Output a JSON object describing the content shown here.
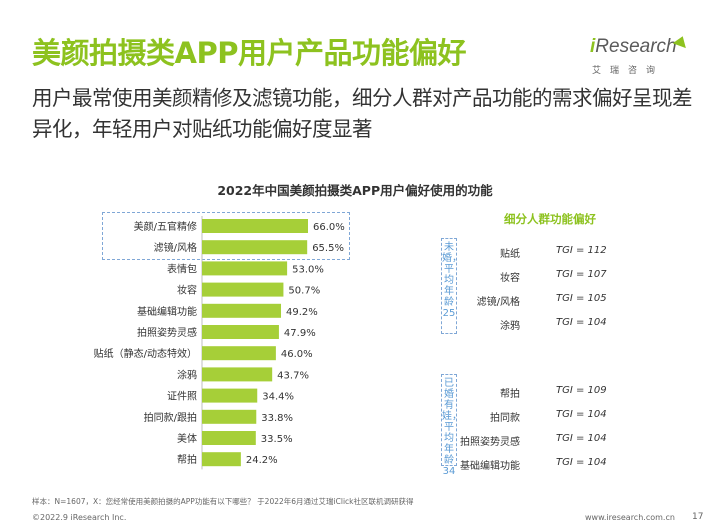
{
  "header": {
    "title": "美颜拍摄类APP用户产品功能偏好",
    "subtitle": "用户最常使用美颜精修及滤镜功能，细分人群对产品功能的需求偏好呈现差异化，年轻用户对贴纸功能偏好度显著"
  },
  "logo": {
    "text_prefix": "i",
    "text_main": "Research",
    "sub": "艾瑞咨询"
  },
  "chart_data": {
    "type": "bar",
    "orientation": "horizontal",
    "title": "2022年中国美颜拍摄类APP用户偏好使用的功能",
    "categories": [
      "美颜/五官精修",
      "滤镜/风格",
      "表情包",
      "妆容",
      "基础编辑功能",
      "拍照姿势灵感",
      "贴纸（静态/动态特效）",
      "涂鸦",
      "证件照",
      "拍同款/跟拍",
      "美体",
      "帮拍"
    ],
    "values": [
      66.0,
      65.5,
      53.0,
      50.7,
      49.2,
      47.9,
      46.0,
      43.7,
      34.4,
      33.8,
      33.5,
      24.2
    ],
    "value_labels": [
      "66.0%",
      "65.5%",
      "53.0%",
      "50.7%",
      "49.2%",
      "47.9%",
      "46.0%",
      "43.7%",
      "34.4%",
      "33.8%",
      "33.5%",
      "24.2%"
    ],
    "unit": "%",
    "bar_color": "#a6cf38",
    "highlight_color": "#7fa7d6"
  },
  "segments": {
    "title": "细分人群功能偏好",
    "groups": [
      {
        "label": "未婚，平均年龄25",
        "items": [
          {
            "name": "贴纸",
            "tgi": "TGI = 112"
          },
          {
            "name": "妆容",
            "tgi": "TGI = 107"
          },
          {
            "name": "滤镜/风格",
            "tgi": "TGI = 105"
          },
          {
            "name": "涂鸦",
            "tgi": "TGI = 104"
          }
        ]
      },
      {
        "label": "已婚有娃，平均年龄34",
        "items": [
          {
            "name": "帮拍",
            "tgi": "TGI = 109"
          },
          {
            "name": "拍同款",
            "tgi": "TGI = 104"
          },
          {
            "name": "拍照姿势灵感",
            "tgi": "TGI = 104"
          },
          {
            "name": "基础编辑功能",
            "tgi": "TGI = 104"
          }
        ]
      }
    ]
  },
  "footer": {
    "note": "样本：N=1607，X：您经常使用美颜拍摄的APP功能有以下哪些？ 于2022年6月通过艾瑞iClick社区联机调研获得",
    "copyright": "©2022.9 iResearch Inc.",
    "site": "www.iresearch.com.cn",
    "page": "17"
  }
}
